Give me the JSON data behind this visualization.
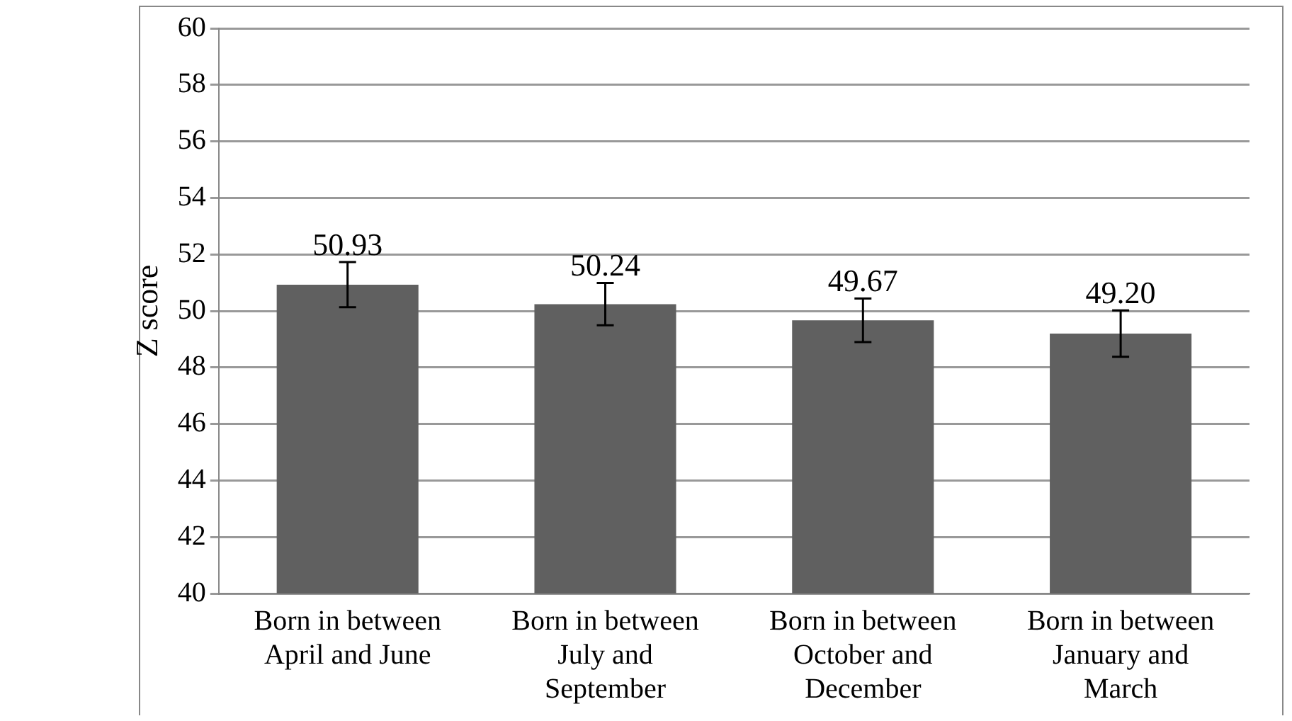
{
  "chart_data": {
    "type": "bar",
    "ylabel": "Z score",
    "categories": [
      "Born in between April and June",
      "Born in between July and September",
      "Born in between October and December",
      "Born in between January and March"
    ],
    "values": [
      50.93,
      50.24,
      49.67,
      49.2
    ],
    "errors": [
      0.8,
      0.75,
      0.77,
      0.82
    ],
    "value_labels": [
      "50.93",
      "50.24",
      "49.67",
      "49.20"
    ],
    "color": "#606060",
    "grid": "y",
    "legend": false,
    "ylim": [
      40,
      60
    ],
    "yticks": [
      40,
      42,
      44,
      46,
      48,
      50,
      52,
      54,
      56,
      58,
      60
    ]
  }
}
